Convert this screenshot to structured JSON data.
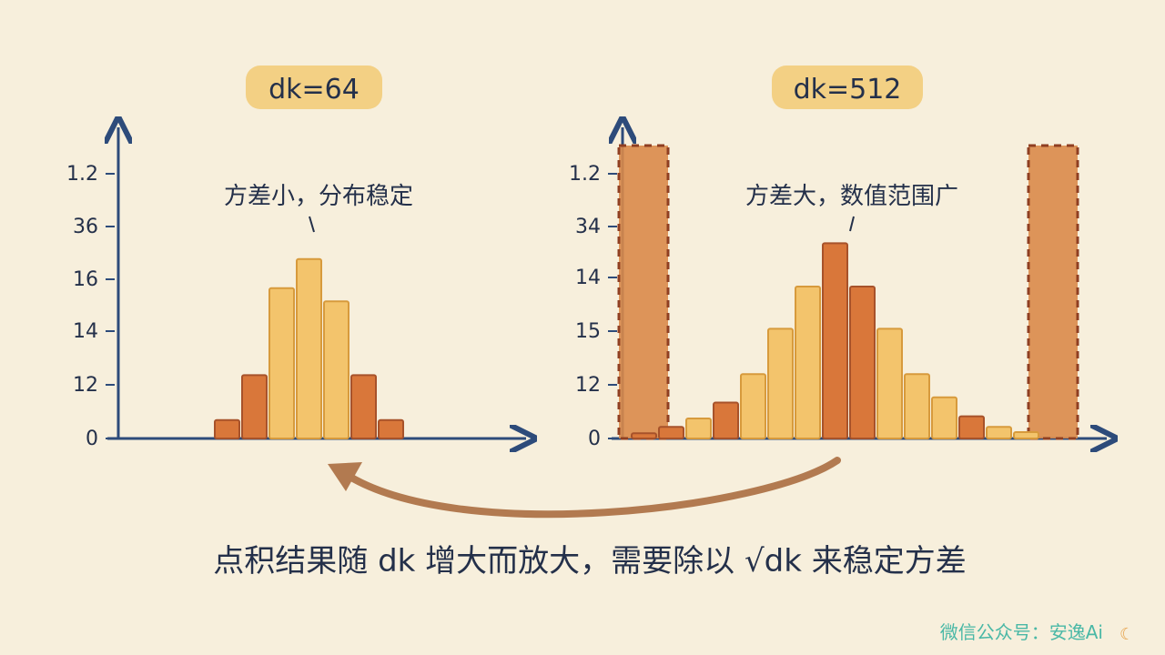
{
  "colors": {
    "background": "#f7efdc",
    "ink": "#24304a",
    "axis": "#2d4b7a",
    "bar_light": "#f3c46c",
    "bar_light_edge": "#d79a3c",
    "bar_dark": "#d9773a",
    "bar_dark_edge": "#a7522a",
    "title_highlight": "#f2cc7a",
    "extreme_fill": "#d98a4a",
    "extreme_dash": "#8f3f22",
    "arrow": "#b27a50",
    "footer": "#4ab8a6"
  },
  "footer_note": "点积结果随 dk 增大而放大，需要除以 √dk 来稳定方差",
  "watermark": "微信公众号：安逸Ai",
  "chart_data": [
    {
      "type": "bar",
      "title": "dk=64",
      "annotation": "方差小，分布稳定",
      "tick_labels": [
        "0",
        "12",
        "14",
        "16",
        "36",
        "1.2"
      ],
      "series": [
        {
          "values": [
            0.35,
            1.2,
            2.85,
            3.4,
            2.6,
            1.2,
            0.35
          ],
          "colors": [
            "dark",
            "dark",
            "light",
            "light",
            "light",
            "dark",
            "dark"
          ]
        }
      ]
    },
    {
      "type": "bar",
      "title": "dk=512",
      "annotation": "方差大，数值范围广",
      "tick_labels": [
        "0",
        "12",
        "15",
        "14",
        "34",
        "1.2"
      ],
      "extremes": {
        "left": 5.6,
        "right": 5.6
      },
      "series": [
        {
          "values": [
            0.1,
            0.22,
            0.38,
            0.68,
            1.22,
            2.08,
            2.88,
            3.7,
            2.88,
            2.08,
            1.22,
            0.78,
            0.42,
            0.22,
            0.12
          ],
          "colors": [
            "dark",
            "dark",
            "light",
            "dark",
            "light",
            "light",
            "light",
            "dark",
            "dark",
            "light",
            "light",
            "light",
            "dark",
            "light",
            "light"
          ]
        }
      ]
    }
  ]
}
